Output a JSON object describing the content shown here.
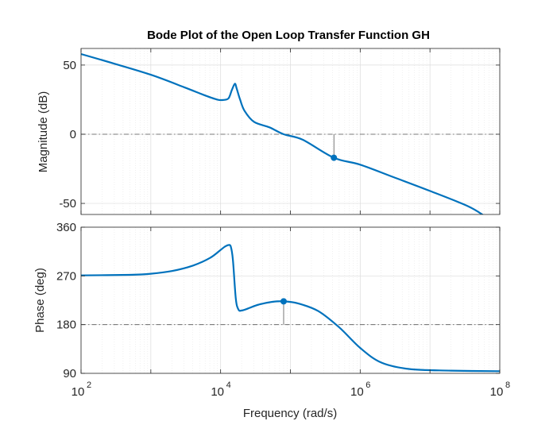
{
  "chart_data": {
    "type": "line",
    "title": "Bode Plot of the Open Loop Transfer Function GH",
    "xlabel": "Frequency  (rad/s)",
    "x_scale": "log",
    "xlim": [
      100,
      100000000
    ],
    "x_tick_labels": [
      {
        "value": 100,
        "base": "10",
        "exp": "2"
      },
      {
        "value": 10000,
        "base": "10",
        "exp": "4"
      },
      {
        "value": 1000000,
        "base": "10",
        "exp": "6"
      },
      {
        "value": 100000000,
        "base": "10",
        "exp": "8"
      }
    ],
    "grid": true,
    "line_color": "#0072BD",
    "magnitude": {
      "ylabel": "Magnitude (dB)",
      "ylim": [
        -58,
        62
      ],
      "yticks": [
        -50,
        0,
        50
      ],
      "ytick_labels": [
        "-50",
        "0",
        "50"
      ],
      "reference_line": 0,
      "marker": {
        "x": 420000,
        "y": -17
      },
      "x": [
        100,
        300,
        1000,
        3000,
        6000,
        9000,
        11000,
        13000,
        14500,
        16000,
        17000,
        19000,
        22000,
        30000,
        50000,
        80000,
        150000,
        420000,
        1000000,
        3000000,
        10000000,
        35000000,
        60000000
      ],
      "y": [
        58,
        51,
        43,
        34,
        28,
        25,
        24.8,
        26,
        32,
        36.5,
        33,
        25,
        17,
        9,
        5,
        0,
        -4,
        -17,
        -22,
        -31,
        -41,
        -52,
        -59
      ]
    },
    "phase": {
      "ylabel": "Phase (deg)",
      "ylim": [
        90,
        360
      ],
      "yticks": [
        90,
        180,
        270,
        360
      ],
      "ytick_labels": [
        "90",
        "180",
        "270",
        "360"
      ],
      "reference_line": 180,
      "marker": {
        "x": 80000,
        "y": 223
      },
      "x": [
        100,
        500,
        1000,
        2000,
        4000,
        7000,
        10000,
        11500,
        13000,
        14000,
        15000,
        16500,
        18000,
        20000,
        25000,
        35000,
        55000,
        80000,
        130000,
        250000,
        500000,
        1000000,
        2000000,
        5000000,
        20000000,
        100000000
      ],
      "y": [
        271,
        272,
        274,
        279,
        289,
        303,
        318,
        324,
        327,
        324,
        300,
        228,
        208,
        206,
        210,
        217,
        222,
        223,
        219,
        205,
        175,
        137,
        110,
        98,
        95,
        94
      ]
    }
  }
}
